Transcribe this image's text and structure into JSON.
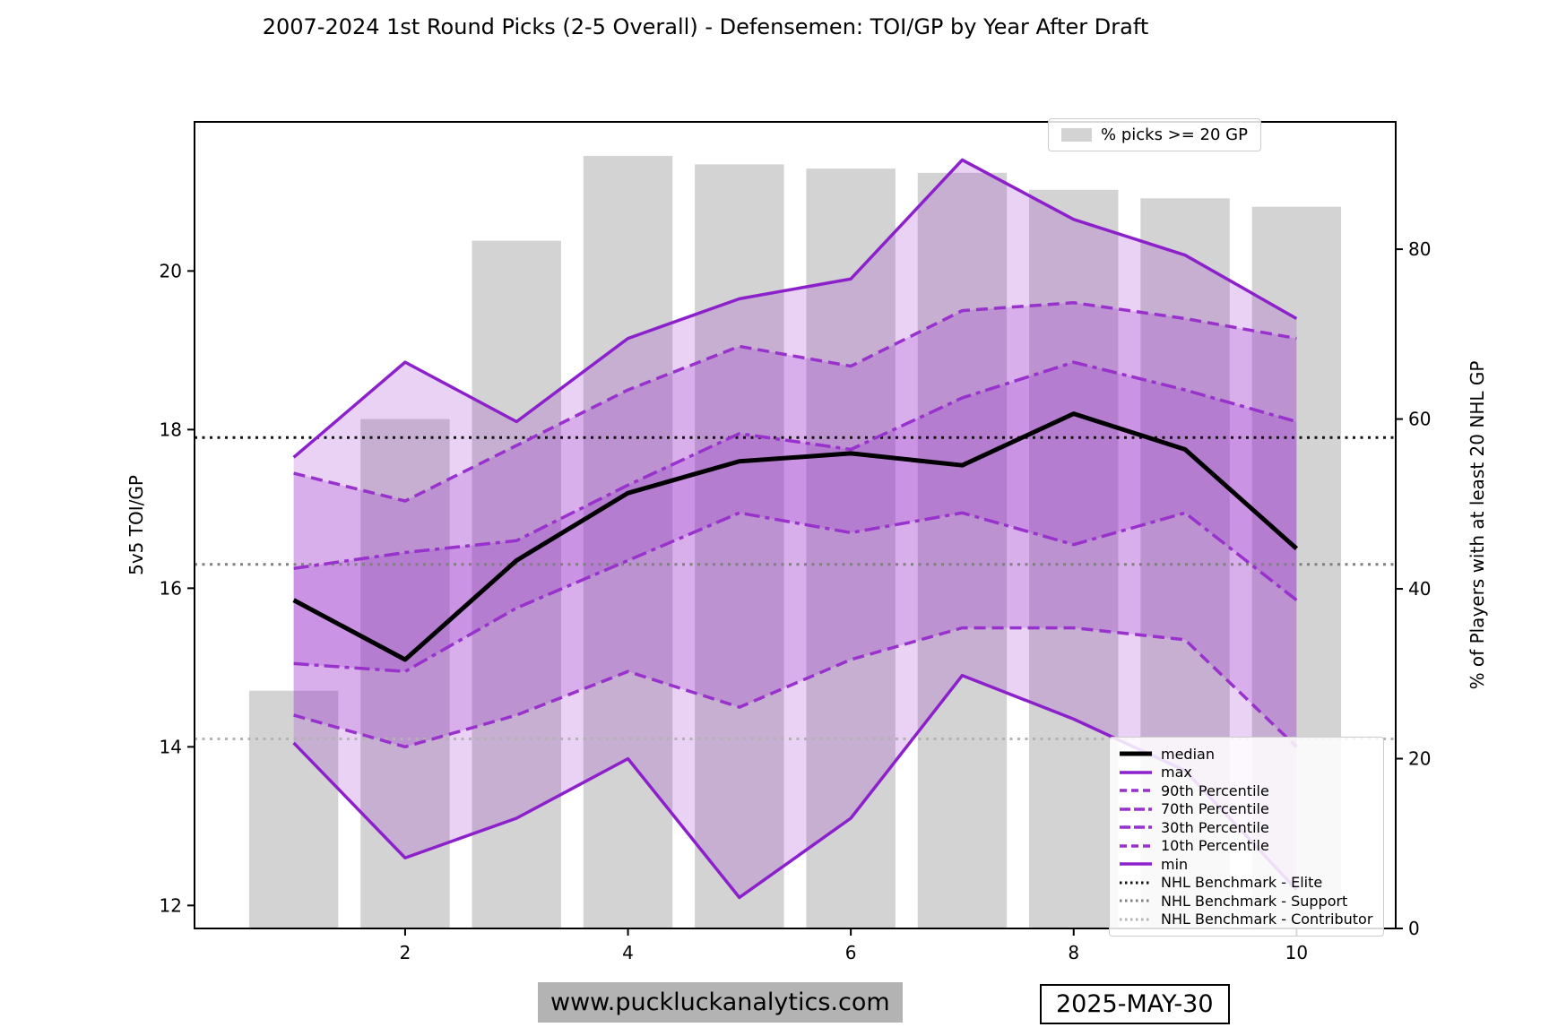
{
  "page_title": "2007-2024 1st Round Picks (2-5 Overall) - Defensemen: TOI/GP by Year After Draft",
  "footer": {
    "website": "www.puckluckanalytics.com",
    "date": "2025-MAY-30"
  },
  "legend_top": {
    "label": "% picks >= 20 GP"
  },
  "chart_data": {
    "type": "line+bar",
    "title": "2007-2024 1st Round Picks (2-5 Overall) - Defensemen: TOI/GP by Year After Draft",
    "xlabel": "",
    "ylabel_left": "5v5 TOI/GP",
    "ylabel_right": "% of Players with at least 20 NHL GP",
    "x": [
      1,
      2,
      3,
      4,
      5,
      6,
      7,
      8,
      9,
      10
    ],
    "xticks": [
      2,
      4,
      6,
      8,
      10
    ],
    "yticks_left": [
      12,
      14,
      16,
      18,
      20
    ],
    "yticks_right": [
      0,
      20,
      40,
      60,
      80
    ],
    "xlim": [
      0.11,
      10.89
    ],
    "ylim_left": [
      11.71,
      21.88
    ],
    "ylim_right": [
      0,
      95
    ],
    "grid": false,
    "bars": {
      "name": "% picks >= 20 GP",
      "axis": "right",
      "color": "#d3d3d3",
      "bar_width_units": 0.8,
      "values": [
        28,
        60,
        81,
        91,
        90,
        89.5,
        89,
        87,
        86,
        85
      ]
    },
    "series": [
      {
        "name": "median",
        "color": "#000000",
        "style": "solid",
        "width": 5,
        "values": [
          15.85,
          15.1,
          16.35,
          17.2,
          17.6,
          17.7,
          17.55,
          18.2,
          17.75,
          16.5
        ]
      },
      {
        "name": "max",
        "color": "#8c21cc",
        "style": "solid",
        "width": 3.5,
        "values": [
          17.65,
          18.85,
          18.1,
          19.15,
          19.65,
          19.9,
          21.4,
          20.65,
          20.2,
          19.4
        ]
      },
      {
        "name": "90th Percentile",
        "color": "#9932cc",
        "style": "dashed",
        "width": 3.5,
        "values": [
          17.45,
          17.1,
          17.8,
          18.5,
          19.05,
          18.8,
          19.5,
          19.6,
          19.4,
          19.15
        ]
      },
      {
        "name": "70th Percentile",
        "color": "#9932cc",
        "style": "dashdot",
        "width": 3.5,
        "values": [
          16.25,
          16.45,
          16.6,
          17.3,
          17.95,
          17.75,
          18.4,
          18.85,
          18.5,
          18.1
        ]
      },
      {
        "name": "30th Percentile",
        "color": "#9932cc",
        "style": "dashdot",
        "width": 3.5,
        "values": [
          15.05,
          14.95,
          15.75,
          16.35,
          16.95,
          16.7,
          16.95,
          16.55,
          16.95,
          15.85
        ]
      },
      {
        "name": "10th Percentile",
        "color": "#9932cc",
        "style": "dashed",
        "width": 3.5,
        "values": [
          14.4,
          14.0,
          14.4,
          14.95,
          14.5,
          15.1,
          15.5,
          15.5,
          15.35,
          14.0
        ]
      },
      {
        "name": "min",
        "color": "#8c21cc",
        "style": "solid",
        "width": 3.5,
        "values": [
          14.05,
          12.6,
          13.1,
          13.85,
          12.1,
          13.1,
          14.9,
          14.35,
          13.7,
          12.2
        ]
      }
    ],
    "bands": {
      "fill_color": "#9932cc",
      "fill_alpha": 0.22,
      "pairs": [
        [
          "min",
          "max"
        ],
        [
          "10th Percentile",
          "90th Percentile"
        ],
        [
          "30th Percentile",
          "70th Percentile"
        ]
      ]
    },
    "benchmarks": [
      {
        "name": "NHL Benchmark - Elite",
        "value": 17.9,
        "color": "#111111"
      },
      {
        "name": "NHL Benchmark - Support",
        "value": 16.3,
        "color": "#808080"
      },
      {
        "name": "NHL Benchmark - Contributor",
        "value": 14.1,
        "color": "#b3b3b3"
      }
    ],
    "legend_entries": [
      {
        "label": "median",
        "color": "#000000",
        "style": "solid",
        "width": 5
      },
      {
        "label": "max",
        "color": "#8c21cc",
        "style": "solid",
        "width": 3.5
      },
      {
        "label": "90th Percentile",
        "color": "#9932cc",
        "style": "dashed",
        "width": 3.5
      },
      {
        "label": "70th Percentile",
        "color": "#9932cc",
        "style": "dashdot",
        "width": 3.5
      },
      {
        "label": "30th Percentile",
        "color": "#9932cc",
        "style": "dashdot",
        "width": 3.5
      },
      {
        "label": "10th Percentile",
        "color": "#9932cc",
        "style": "dashed",
        "width": 3.5
      },
      {
        "label": "min",
        "color": "#8c21cc",
        "style": "solid",
        "width": 3.5
      },
      {
        "label": "NHL Benchmark - Elite",
        "color": "#111111",
        "style": "dotted",
        "width": 3
      },
      {
        "label": "NHL Benchmark - Support",
        "color": "#808080",
        "style": "dotted",
        "width": 3
      },
      {
        "label": "NHL Benchmark - Contributor",
        "color": "#b3b3b3",
        "style": "dotted",
        "width": 3
      }
    ]
  }
}
